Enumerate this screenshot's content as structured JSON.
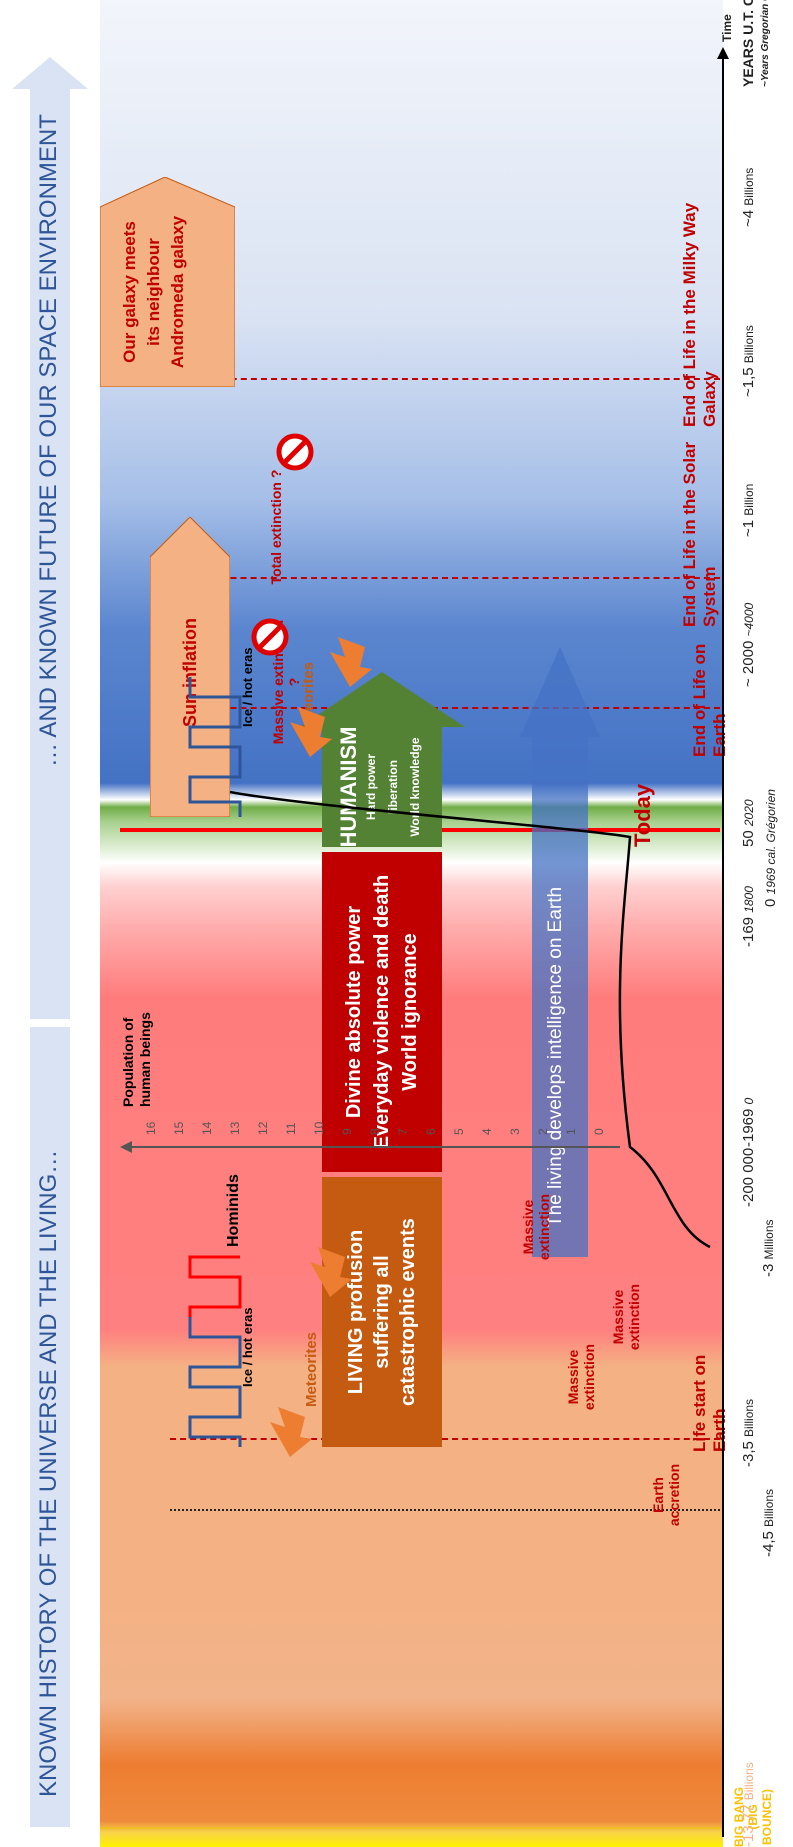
{
  "banners": {
    "past": "KNOWN HISTORY OF THE UNIVERSE AND THE LIVING…",
    "future": "… AND KNOWN FUTURE OF OUR SPACE ENVIRONMENT"
  },
  "timeline": {
    "axis_title": "YEARS U.T. Cal.",
    "axis_subtitle": "~Years Gregorian Cal.",
    "time_label": "Time",
    "ticks": [
      {
        "value": "-13,77",
        "unit": "Billions",
        "sub": ""
      },
      {
        "value": "-4,5",
        "unit": "Billions",
        "sub": ""
      },
      {
        "value": "-3,5",
        "unit": "Billions",
        "sub": ""
      },
      {
        "value": "-3",
        "unit": "Millions",
        "sub": ""
      },
      {
        "value": "-200 000",
        "unit": "",
        "sub": ""
      },
      {
        "value": "-1969",
        "unit": "",
        "sub": "0"
      },
      {
        "value": "-169",
        "unit": "",
        "sub": "1800"
      },
      {
        "value": "0",
        "unit": "",
        "sub": "1969 cal. Grégorien"
      },
      {
        "value": "50",
        "unit": "",
        "sub": "2020"
      },
      {
        "value": "~ 2000",
        "unit": "",
        "sub": "~4000"
      },
      {
        "value": "~1",
        "unit": "Billion",
        "sub": ""
      },
      {
        "value": "~1,5",
        "unit": "Billions",
        "sub": ""
      },
      {
        "value": "~4",
        "unit": "Billions",
        "sub": ""
      }
    ]
  },
  "events": {
    "big_bang": "BIG BANG",
    "big_bounce": "(BIG BOUNCE)",
    "earth_accretion": "Earth accretion",
    "life_start": "Life start on Earth",
    "massive_extinction": "Massive extinction",
    "meteorites": "Meteorites",
    "ice_hot": "Ice / hot eras",
    "hominids": "Hominids",
    "today": "Today",
    "massive_extinction_q": "Massive extinction ?",
    "total_extinction_q": "Total extinction ?",
    "end_earth": "End of Life on Earth",
    "end_solar": "End of Life in the Solar System",
    "end_galaxy": "End of Life in the Milky Way Galaxy"
  },
  "boxes": {
    "living": [
      "LIVING profusion",
      "suffering all",
      "catastrophic events"
    ],
    "divine": [
      "Divine absolute power",
      "Everyday violence and death",
      "World ignorance"
    ],
    "humanism_title": "HUMANISM",
    "humanism_lines": [
      "Hard power liberation",
      "World knowledge"
    ],
    "intelligence": "The living develops intelligence on Earth",
    "sun_inflation": "Sun inflation",
    "andromeda": [
      "Our galaxy meets",
      "its neighbour",
      "Andromeda galaxy"
    ]
  },
  "population_axis": {
    "title": [
      "Population of",
      "human beings"
    ],
    "ticks": [
      "0",
      "1",
      "2",
      "3",
      "4",
      "5",
      "6",
      "7",
      "8",
      "9",
      "10",
      "11",
      "12",
      "13",
      "14",
      "15",
      "16"
    ]
  }
}
